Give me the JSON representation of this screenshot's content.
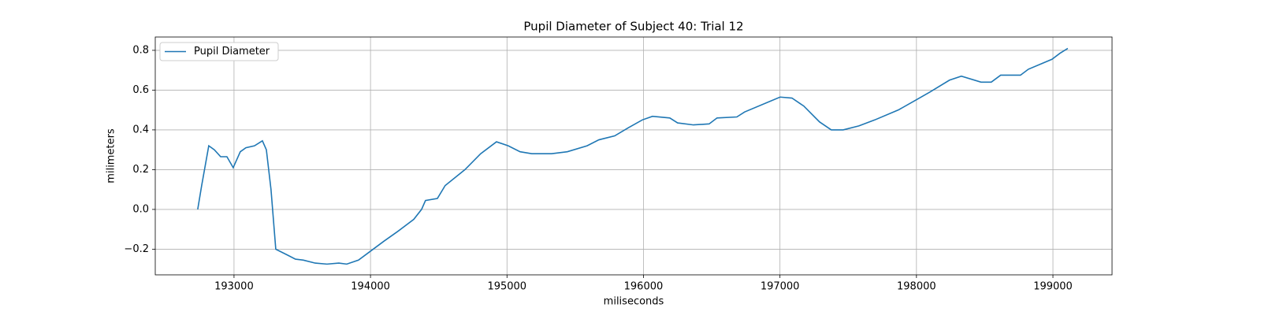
{
  "chart_data": {
    "type": "line",
    "title": "Pupil Diameter of Subject 40: Trial 12",
    "x_label": "miliseconds",
    "y_label": "milimeters",
    "x": [
      192734,
      192763,
      192815,
      192856,
      192902,
      192948,
      192994,
      193046,
      193087,
      193150,
      193208,
      193237,
      193271,
      193306,
      193393,
      193450,
      193508,
      193595,
      193681,
      193768,
      193826,
      193912,
      194000,
      194098,
      194201,
      194317,
      194374,
      194403,
      194490,
      194547,
      194692,
      194807,
      194923,
      195009,
      195096,
      195182,
      195326,
      195442,
      195587,
      195673,
      195789,
      195887,
      195991,
      196066,
      196193,
      196250,
      196366,
      196481,
      196539,
      196684,
      196741,
      197001,
      197088,
      197174,
      197290,
      197376,
      197463,
      197578,
      197694,
      197867,
      197983,
      198098,
      198242,
      198329,
      198473,
      198548,
      198617,
      198762,
      198820,
      198993,
      199051,
      199109
    ],
    "series": [
      {
        "name": "Pupil Diameter",
        "color": "#1f77b4",
        "values": [
          0.0,
          0.12,
          0.32,
          0.3,
          0.265,
          0.265,
          0.21,
          0.29,
          0.31,
          0.32,
          0.345,
          0.3,
          0.1,
          -0.2,
          -0.23,
          -0.25,
          -0.255,
          -0.27,
          -0.275,
          -0.27,
          -0.275,
          -0.255,
          -0.21,
          -0.16,
          -0.11,
          -0.05,
          0.0,
          0.045,
          0.055,
          0.12,
          0.2,
          0.28,
          0.34,
          0.32,
          0.29,
          0.28,
          0.28,
          0.29,
          0.32,
          0.35,
          0.37,
          0.41,
          0.45,
          0.468,
          0.46,
          0.435,
          0.425,
          0.43,
          0.46,
          0.465,
          0.49,
          0.565,
          0.56,
          0.52,
          0.44,
          0.4,
          0.4,
          0.42,
          0.45,
          0.5,
          0.545,
          0.59,
          0.65,
          0.67,
          0.64,
          0.64,
          0.675,
          0.675,
          0.705,
          0.755,
          0.785,
          0.81
        ]
      }
    ],
    "xlim": [
      192423,
      199433
    ],
    "xticks": [
      193000,
      194000,
      195000,
      196000,
      197000,
      198000,
      199000
    ],
    "ylim": [
      -0.329,
      0.867
    ],
    "yticks": [
      {
        "value": -0.2,
        "label": "−0.2"
      },
      {
        "value": 0.0,
        "label": "0.0"
      },
      0.2,
      0.4,
      0.6,
      0.8
    ],
    "grid": true,
    "legend": "upper left"
  }
}
